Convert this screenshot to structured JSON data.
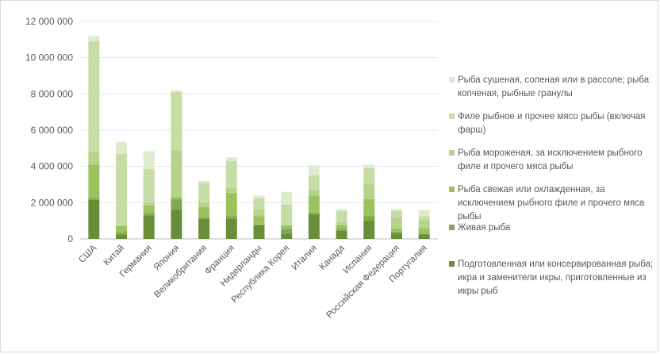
{
  "chart_data": {
    "type": "bar",
    "stacked": true,
    "categories": [
      "США",
      "Китай",
      "Германия",
      "Япония",
      "Великобритания",
      "Франция",
      "Нидерланды",
      "Республика Корея",
      "Италия",
      "Канада",
      "Испания",
      "Российская Федерация",
      "Португалия"
    ],
    "y_ticks": [
      "0",
      "2 000 000",
      "4 000 000",
      "6 000 000",
      "8 000 000",
      "10 000 000",
      "12 000 000"
    ],
    "ylim": [
      0,
      12000000
    ],
    "grid": "horizontal",
    "legend_position": "right",
    "series": [
      {
        "name": "Подготовленная или консервированная рыба; икра и заменители икры, приготовленные из икры рыб",
        "color": "#6a8d3a",
        "values": [
          2150000,
          250000,
          1300000,
          1600000,
          1100000,
          1100000,
          750000,
          300000,
          1350000,
          450000,
          1000000,
          300000,
          250000
        ]
      },
      {
        "name": "Живая рыба",
        "color": "#82a84c",
        "values": [
          100000,
          100000,
          100000,
          600000,
          100000,
          150000,
          50000,
          250000,
          100000,
          100000,
          250000,
          100000,
          50000
        ]
      },
      {
        "name": "Рыба свежая или охлажденная, за исключением рыбного филе и прочего мяса рыбы",
        "color": "#9dc15e",
        "values": [
          1850000,
          350000,
          450000,
          100000,
          550000,
          1300000,
          450000,
          200000,
          950000,
          200000,
          950000,
          150000,
          300000
        ]
      },
      {
        "name": "Рыба мороженая, за исключением рыбного филе и прочего мяса рыбы",
        "color": "#b6d38a",
        "values": [
          700000,
          50000,
          150000,
          2600000,
          250000,
          250000,
          350000,
          0,
          300000,
          150000,
          800000,
          650000,
          450000
        ]
      },
      {
        "name": "Филе рыбное и прочее мясо рыбы (включая фарш)",
        "color": "#c6dda6",
        "values": [
          6100000,
          3950000,
          1850000,
          3200000,
          1100000,
          1500000,
          650000,
          1150000,
          800000,
          650000,
          900000,
          350000,
          200000
        ]
      },
      {
        "name": "Рыба сушеная, соленая или в рассоле; рыба копченая, рыбные гранулы",
        "color": "#dfebcd",
        "values": [
          300000,
          650000,
          1000000,
          100000,
          100000,
          200000,
          150000,
          700000,
          550000,
          100000,
          200000,
          100000,
          350000
        ]
      }
    ]
  }
}
